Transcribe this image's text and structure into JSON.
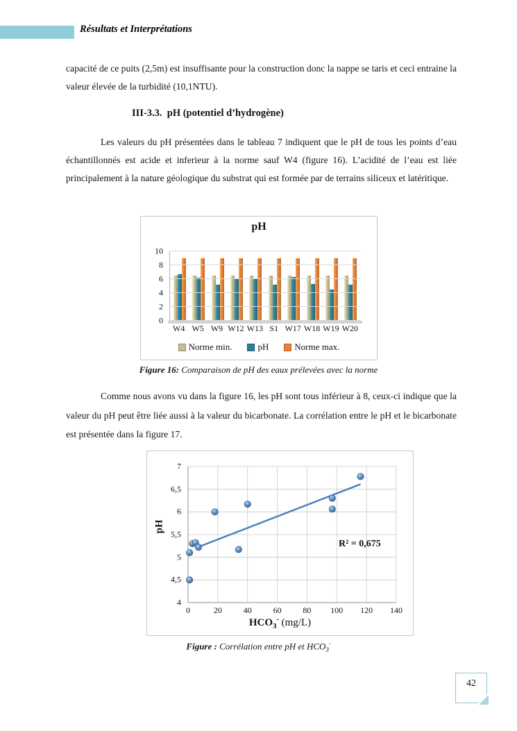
{
  "header": {
    "title": "Résultats et Interprétations"
  },
  "paragraphs": {
    "p1": "capacité de ce puits (2,5m) est insuffisante pour la construction donc la nappe se taris et ceci entraine la valeur élevée de la turbidité (10,1NTU).",
    "heading": "III-3.3.  pH (potentiel d’hydrogène)",
    "p2": "Les valeurs du pH présentées dans le tableau 7 indiquent que le pH de tous les points d’eau échantillonnés est acide et inferieur à la norme sauf W4 (figure 16). L’acidité de l’eau est liée principalement à la nature géologique du substrat  qui est formée par de terrains siliceux et latéritique.",
    "p3": "Comme nous avons vu dans la figure 16, les pH sont tous inférieur à 8, ceux-ci indique que la valeur du pH peut être liée aussi à la valeur du bicarbonate. La corrélation entre le pH et le bicarbonate est présentée dans la figure 17."
  },
  "captions": {
    "fig16": {
      "label": "Figure 16:",
      "text": " Comparaison de pH des eaux prélevées avec la norme"
    },
    "fig17": {
      "label": "Figure :",
      "text": " Corrélation entre pH et HCO",
      "sub": "3",
      "sup": "-"
    }
  },
  "page_number": "42",
  "colors": {
    "accent_bar": "#92cddc",
    "norme_min": "#c6be95",
    "ph_bar": "#2e7f96",
    "norme_max": "#e8823a",
    "marker_blue": "#4f81bd",
    "trendline_blue": "#4a7ebb",
    "gridline": "#c9c9c9"
  },
  "chart_data": [
    {
      "type": "bar",
      "title": "pH",
      "categories": [
        "W4",
        "W5",
        "W9",
        "W12",
        "W13",
        "S1",
        "W17",
        "W18",
        "W19",
        "W20"
      ],
      "series": [
        {
          "name": "Norme min.",
          "color": "#c6be95",
          "values": [
            6.5,
            6.5,
            6.5,
            6.5,
            6.5,
            6.5,
            6.5,
            6.5,
            6.5,
            6.5
          ]
        },
        {
          "name": "pH",
          "color": "#2e7f96",
          "values": [
            6.7,
            6.2,
            5.2,
            6.1,
            6.0,
            5.2,
            6.3,
            5.3,
            4.5,
            5.2
          ]
        },
        {
          "name": "Norme max.",
          "color": "#e8823a",
          "values": [
            9,
            9,
            9,
            9,
            9,
            9,
            9,
            9,
            9,
            9
          ]
        }
      ],
      "ylim": [
        0,
        10
      ],
      "yticks": [
        0,
        2,
        4,
        6,
        8,
        10
      ],
      "grid": true,
      "legend_position": "bottom"
    },
    {
      "type": "scatter",
      "ylabel": "pH",
      "xlabel_parts": {
        "base": "HCO",
        "sub": "3",
        "sup": "-",
        "unit": " (mg/L)"
      },
      "xlim": [
        0,
        140
      ],
      "ylim": [
        4,
        7
      ],
      "xticks": [
        0,
        20,
        40,
        60,
        80,
        100,
        120,
        140
      ],
      "xtick_labels": [
        "0",
        "20",
        "40",
        "60",
        "80",
        "100",
        "120",
        "140"
      ],
      "yticks": [
        4,
        4.5,
        5,
        5.5,
        6,
        6.5,
        7
      ],
      "ytick_labels": [
        "4",
        "4,5",
        "5",
        "5,5",
        "6",
        "6,5",
        "7"
      ],
      "points": [
        [
          1,
          4.5
        ],
        [
          1,
          5.1
        ],
        [
          3,
          5.3
        ],
        [
          5,
          5.32
        ],
        [
          7,
          5.22
        ],
        [
          18,
          6.0
        ],
        [
          34,
          5.17
        ],
        [
          40,
          6.17
        ],
        [
          97,
          6.06
        ],
        [
          97,
          6.3
        ],
        [
          116,
          6.78
        ]
      ],
      "trendline": {
        "x1": 8,
        "y1": 5.24,
        "x2": 116,
        "y2": 6.61
      },
      "annotation": "R² = 0,675",
      "grid": true
    }
  ]
}
